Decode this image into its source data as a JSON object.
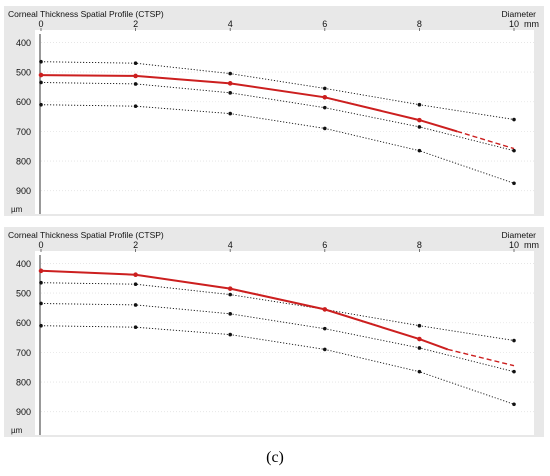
{
  "caption": "(c)",
  "colors": {
    "profile": "#cc1f1f",
    "band": "#111111",
    "panel_bg": "#e8e8e8",
    "plot_bg": "#ffffff",
    "grid": "#e3e3e3"
  },
  "chart_data": [
    {
      "type": "line",
      "title": "Corneal Thickness Spatial Profile (CTSP)",
      "corner_label": "Diameter",
      "x_unit": "mm",
      "y_unit": "µm",
      "x_ticks": [
        "0",
        "2",
        "4",
        "6",
        "8",
        "10"
      ],
      "y_ticks": [
        "400",
        "500",
        "600",
        "700",
        "800",
        "900"
      ],
      "xlim": [
        0,
        10
      ],
      "ylim": [
        380,
        960
      ],
      "y_inverted": true,
      "grid": "horizontal dotted",
      "series": [
        {
          "role": "band",
          "style": "dotted",
          "x": [
            0,
            2,
            4,
            6,
            8,
            10
          ],
          "values": [
            465,
            470,
            505,
            555,
            610,
            660
          ]
        },
        {
          "role": "band",
          "style": "dotted",
          "x": [
            0,
            2,
            4,
            6,
            8,
            10
          ],
          "values": [
            535,
            540,
            570,
            620,
            685,
            765
          ]
        },
        {
          "role": "band",
          "style": "dotted",
          "x": [
            0,
            2,
            4,
            6,
            8,
            10
          ],
          "values": [
            610,
            615,
            640,
            690,
            765,
            875
          ]
        },
        {
          "role": "profile",
          "style": "solid",
          "x": [
            0,
            2,
            4,
            6,
            8,
            8.8
          ],
          "values": [
            510,
            513,
            538,
            585,
            662,
            700
          ]
        },
        {
          "role": "profile-extrapolated",
          "style": "dashed",
          "x": [
            8.8,
            10
          ],
          "values": [
            700,
            758
          ]
        }
      ]
    },
    {
      "type": "line",
      "title": "Corneal Thickness Spatial Profile (CTSP)",
      "corner_label": "Diameter",
      "x_unit": "mm",
      "y_unit": "µm",
      "x_ticks": [
        "0",
        "2",
        "4",
        "6",
        "8",
        "10"
      ],
      "y_ticks": [
        "400",
        "500",
        "600",
        "700",
        "800",
        "900"
      ],
      "xlim": [
        0,
        10
      ],
      "ylim": [
        380,
        960
      ],
      "y_inverted": true,
      "grid": "horizontal dotted",
      "series": [
        {
          "role": "band",
          "style": "dotted",
          "x": [
            0,
            2,
            4,
            6,
            8,
            10
          ],
          "values": [
            465,
            470,
            505,
            555,
            610,
            660
          ]
        },
        {
          "role": "band",
          "style": "dotted",
          "x": [
            0,
            2,
            4,
            6,
            8,
            10
          ],
          "values": [
            535,
            540,
            570,
            620,
            685,
            765
          ]
        },
        {
          "role": "band",
          "style": "dotted",
          "x": [
            0,
            2,
            4,
            6,
            8,
            10
          ],
          "values": [
            610,
            615,
            640,
            690,
            765,
            875
          ]
        },
        {
          "role": "profile",
          "style": "solid",
          "x": [
            0,
            2,
            4,
            6,
            8,
            8.6
          ],
          "values": [
            425,
            438,
            485,
            555,
            655,
            690
          ]
        },
        {
          "role": "profile-extrapolated",
          "style": "dashed",
          "x": [
            8.6,
            10
          ],
          "values": [
            690,
            745
          ]
        }
      ]
    }
  ]
}
